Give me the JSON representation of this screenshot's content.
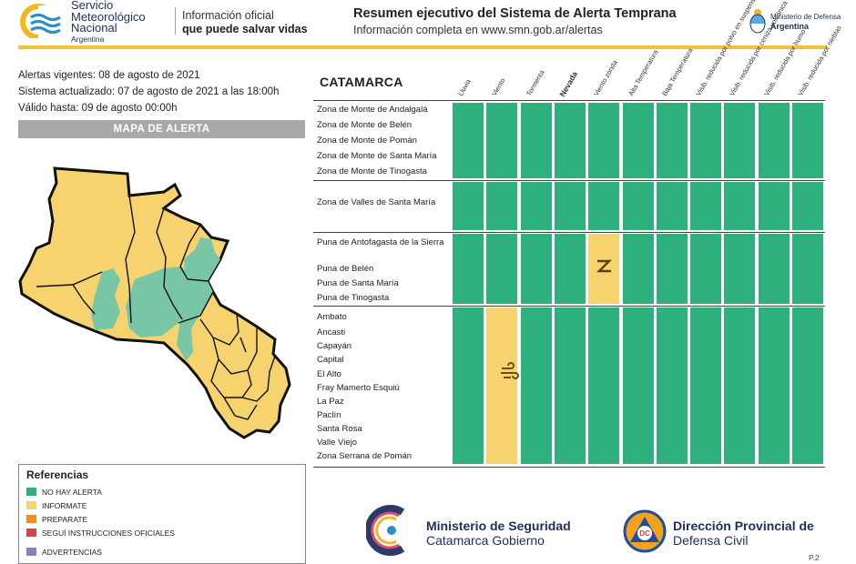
{
  "header": {
    "org_line1": "Servicio",
    "org_line2": "Meteorológico",
    "org_line3": "Nacional",
    "org_line4": "Argentina",
    "tagline_1": "Información oficial",
    "tagline_2": "que puede salvar vidas",
    "title": "Resumen ejecutivo del Sistema de Alerta Temprana",
    "subtitle": "Información completa en www.smn.gob.ar/alertas",
    "ministry_line1": "Ministerio de Defensa",
    "ministry_line2": "Argentina"
  },
  "info": {
    "vigentes": "Alertas vigentes: 08 de agosto de 2021",
    "actualizado": "Sistema actualizado: 07 de agosto de 2021 a las 18:00h",
    "valido": "Válido hasta: 09 de agosto 00:00h"
  },
  "map": {
    "title": "MAPA DE ALERTA",
    "colors": {
      "green": "#79c6a6",
      "yellow": "#f6d36f",
      "border": "#111111"
    }
  },
  "references": {
    "title": "Referencias",
    "items": [
      {
        "label": "NO HAY ALERTA",
        "color": "#2fb17e"
      },
      {
        "label": "INFORMATE",
        "color": "#f6d36f"
      },
      {
        "label": "PREPARATE",
        "color": "#f08a2c"
      },
      {
        "label": "SEGUÍ INSTRUCCIONES OFICIALES",
        "color": "#e0404a"
      },
      {
        "label": "ADVERTENCIAS",
        "color": "#8a7fc4"
      }
    ]
  },
  "grid": {
    "region": "CATAMARCA",
    "columns": [
      "Lluvia",
      "Viento",
      "Tormenta",
      "Nevada",
      "Viento zonda",
      "Alta Temperatura",
      "Baja Temperatura",
      "Visib. reducida por polvo en suspension",
      "Visib. reducida por ceniza volcánica",
      "Visib. reducida por humo",
      "Visib. reducida por nieblas"
    ],
    "groups": [
      {
        "zones": [
          "Zona de Monte de Andalgalá",
          "Zona de Monte de Belén",
          "Zona de Monte de Pomán",
          "Zona de Monte de Santa María",
          "Zona de Monte de Tinogasta"
        ],
        "yellow_cols": []
      },
      {
        "zones": [
          "Zona de Valles de Santa María"
        ],
        "yellow_cols": []
      },
      {
        "zones": [
          "Puna de Antofagasta de la Sierra",
          "Puna de Belén",
          "Puna de Santa María",
          "Puna de Tinogasta"
        ],
        "yellow_cols": [
          4
        ]
      },
      {
        "zones": [
          "Ambato",
          "Ancasti",
          "Capayán",
          "Capital",
          "El Alto",
          "Fray Mamerto Esquiú",
          "La Paz",
          "Paclín",
          "Santa Rosa",
          "Valle Viejo",
          "Zona Serrana de Pomán"
        ],
        "yellow_cols": [
          1
        ]
      }
    ],
    "colors": {
      "green": "#2fb17e",
      "yellow": "#f6d36f"
    },
    "icons": [
      "wind-icon",
      "zonda-icon"
    ]
  },
  "footer": {
    "ministerio_l1": "Ministerio de Seguridad",
    "ministerio_l2": "Catamarca Gobierno",
    "dc_badge": "DC",
    "dc_l1": "Dirección Provincial de",
    "dc_l2": "Defensa Civil",
    "page": "P.2"
  }
}
